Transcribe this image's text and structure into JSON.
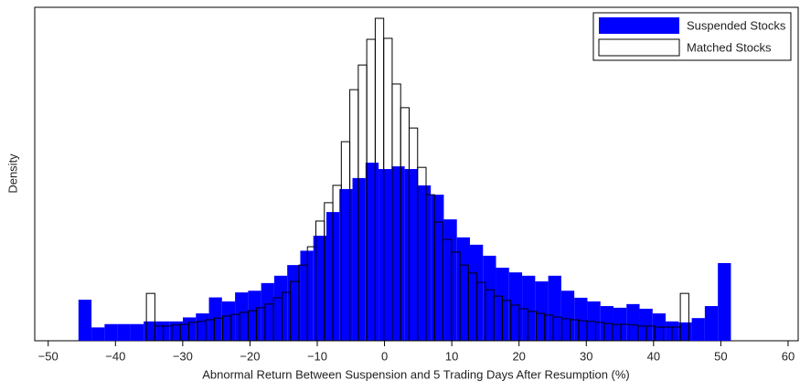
{
  "chart_data": {
    "type": "histogram",
    "xlabel": "Abnormal Return Between Suspension and 5 Trading Days After Resumption (%)",
    "ylabel": "Density",
    "xlim": [
      -52,
      61.5
    ],
    "ylim": [
      0,
      100
    ],
    "xticks": [
      {
        "value": -50,
        "label": "−50"
      },
      {
        "value": -40,
        "label": "−40"
      },
      {
        "value": -30,
        "label": "−30"
      },
      {
        "value": -20,
        "label": "−20"
      },
      {
        "value": -10,
        "label": "−10"
      },
      0,
      10,
      20,
      30,
      40,
      50,
      60
    ],
    "legend": "upper right",
    "series": [
      {
        "name": "Suspended Stocks",
        "color": "#0000ff",
        "style": "filled",
        "bins": [
          -45.5,
          -43.56,
          -41.62,
          -39.68,
          -37.74,
          -35.8,
          -33.86,
          -31.92,
          -29.98,
          -28.04,
          -26.1,
          -24.16,
          -22.22,
          -20.28,
          -18.34,
          -16.4,
          -14.46,
          -12.52,
          -10.58,
          -8.64,
          -6.7,
          -4.76,
          -2.82,
          -0.88,
          1.06,
          3,
          4.94,
          6.88,
          8.82,
          10.76,
          12.7,
          14.64,
          16.58,
          18.52,
          20.46,
          22.4,
          24.34,
          26.28,
          28.22,
          30.16,
          32.1,
          34.04,
          35.98,
          37.92,
          39.86,
          41.8,
          43.74,
          45.68,
          47.62,
          49.56,
          51.5
        ],
        "values": [
          12.3,
          4,
          5,
          5,
          5,
          5.8,
          5.8,
          5.8,
          7,
          8.2,
          13,
          11.8,
          14.5,
          15,
          17.3,
          19.5,
          22.7,
          27,
          31.5,
          38.6,
          45.5,
          48.8,
          53.4,
          51.5,
          52.3,
          51.5,
          46.6,
          43.8,
          36.4,
          31,
          28.8,
          25.5,
          21.9,
          20.5,
          19.5,
          17.8,
          19.5,
          15,
          12.9,
          11.8,
          10.4,
          9.9,
          11,
          9.6,
          8.2,
          5.8,
          5.5,
          6.8,
          10.4,
          23.3
        ]
      },
      {
        "name": "Matched Stocks",
        "color": "#000000",
        "style": "outline",
        "bins": [
          -35.4,
          -34.14,
          -32.88,
          -31.62,
          -30.36,
          -29.1,
          -27.84,
          -26.58,
          -25.32,
          -24.06,
          -22.8,
          -21.54,
          -20.28,
          -19.02,
          -17.76,
          -16.5,
          -15.24,
          -13.98,
          -12.72,
          -11.46,
          -10.2,
          -8.94,
          -7.68,
          -6.42,
          -5.16,
          -3.9,
          -2.64,
          -1.38,
          -0.12,
          1.14,
          2.4,
          3.66,
          4.92,
          6.18,
          7.44,
          8.7,
          9.96,
          11.22,
          12.48,
          13.74,
          15,
          16.26,
          17.52,
          18.78,
          20.04,
          21.3,
          22.56,
          23.82,
          25.08,
          26.34,
          27.6,
          28.86,
          30.12,
          31.38,
          32.64,
          33.9,
          35.16,
          36.42,
          37.68,
          38.94,
          40.2,
          41.46,
          42.72,
          43.98,
          45.24
        ],
        "values": [
          14.2,
          4.4,
          4.4,
          4.7,
          4.9,
          5.5,
          5.8,
          6.3,
          6.8,
          7.4,
          7.9,
          8.5,
          9,
          9.9,
          11,
          12.9,
          14.5,
          17.8,
          22.7,
          28.2,
          35.9,
          41.4,
          46.6,
          59.7,
          75.3,
          82.7,
          90.4,
          96.7,
          90.7,
          77,
          69.9,
          63.8,
          52,
          43.8,
          35.6,
          30.4,
          26.6,
          22.7,
          20.3,
          17.5,
          15.3,
          13.4,
          12.1,
          10.7,
          9.6,
          8.8,
          8.2,
          7.7,
          7.1,
          6.6,
          6.3,
          6,
          5.8,
          5.5,
          5.2,
          4.9,
          4.9,
          4.7,
          4.4,
          4.4,
          4.1,
          4.1,
          4.1,
          14.2
        ]
      }
    ]
  }
}
